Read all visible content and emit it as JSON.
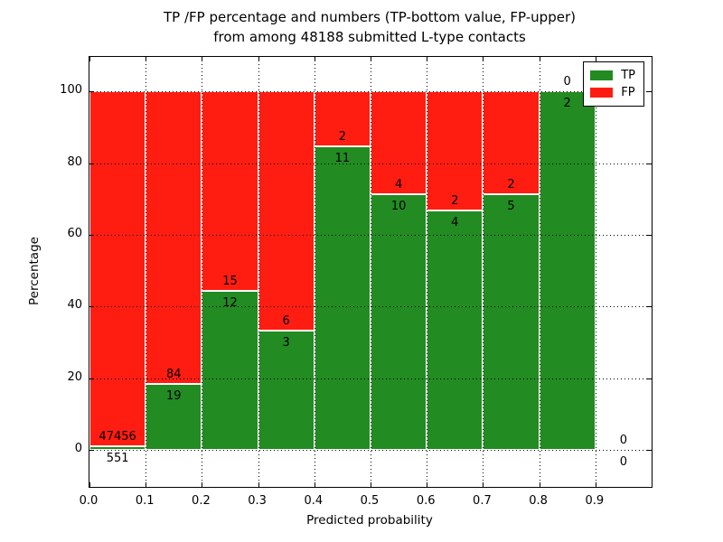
{
  "title": {
    "line1": "TP /FP percentage and numbers (TP-bottom value, FP-upper)",
    "line2": "from among 48188 submitted L-type contacts"
  },
  "chart_data": {
    "type": "bar",
    "stacked": true,
    "title": "TP /FP percentage and numbers (TP-bottom value, FP-upper)\nfrom among 48188 submitted L-type contacts",
    "xlabel": "Predicted probability",
    "ylabel": "Percentage",
    "xlim": [
      0.0,
      1.0
    ],
    "ylim": [
      -10.3,
      109.6
    ],
    "xticks": [
      "0.0",
      "0.1",
      "0.2",
      "0.3",
      "0.4",
      "0.5",
      "0.6",
      "0.7",
      "0.8",
      "0.9"
    ],
    "yticks": [
      "0",
      "20",
      "40",
      "60",
      "80",
      "100"
    ],
    "grid": true,
    "grid_style": "dotted",
    "legend_position": "upper right",
    "total_contacts": 48188,
    "series": [
      {
        "name": "TP",
        "color": "#228B22"
      },
      {
        "name": "FP",
        "color": "#FF1D12"
      }
    ],
    "bins": [
      {
        "x_start": 0.0,
        "x_end": 0.1,
        "tp_count": 551,
        "fp_count": 47456,
        "tp_pct": 1.15,
        "fp_pct": 98.85
      },
      {
        "x_start": 0.1,
        "x_end": 0.2,
        "tp_count": 19,
        "fp_count": 84,
        "tp_pct": 18.45,
        "fp_pct": 81.55
      },
      {
        "x_start": 0.2,
        "x_end": 0.3,
        "tp_count": 12,
        "fp_count": 15,
        "tp_pct": 44.44,
        "fp_pct": 55.56
      },
      {
        "x_start": 0.3,
        "x_end": 0.4,
        "tp_count": 3,
        "fp_count": 6,
        "tp_pct": 33.33,
        "fp_pct": 66.67
      },
      {
        "x_start": 0.4,
        "x_end": 0.5,
        "tp_count": 11,
        "fp_count": 2,
        "tp_pct": 84.62,
        "fp_pct": 15.38
      },
      {
        "x_start": 0.5,
        "x_end": 0.6,
        "tp_count": 10,
        "fp_count": 4,
        "tp_pct": 71.43,
        "fp_pct": 28.57
      },
      {
        "x_start": 0.6,
        "x_end": 0.7,
        "tp_count": 4,
        "fp_count": 2,
        "tp_pct": 66.67,
        "fp_pct": 33.33
      },
      {
        "x_start": 0.7,
        "x_end": 0.8,
        "tp_count": 5,
        "fp_count": 2,
        "tp_pct": 71.43,
        "fp_pct": 28.57
      },
      {
        "x_start": 0.8,
        "x_end": 0.9,
        "tp_count": 2,
        "fp_count": 0,
        "tp_pct": 100,
        "fp_pct": 0
      },
      {
        "x_start": 0.9,
        "x_end": 1.0,
        "tp_count": 0,
        "fp_count": 0,
        "tp_pct": 0,
        "fp_pct": 0
      }
    ]
  },
  "colors": {
    "tp": "#228B22",
    "fp": "#FF1D12",
    "axes": "#000000",
    "background": "#FFFFFF"
  }
}
